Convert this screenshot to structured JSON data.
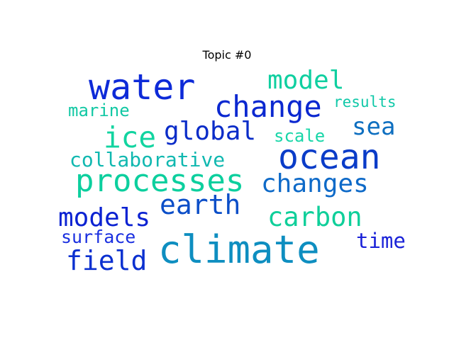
{
  "title": "Topic #0",
  "words": [
    {
      "text": "water",
      "color": "#0d2ad8"
    },
    {
      "text": "model",
      "color": "#0fcfa0"
    },
    {
      "text": "change",
      "color": "#0b28d0"
    },
    {
      "text": "results",
      "color": "#10c8a8"
    },
    {
      "text": "marine",
      "color": "#12c8a4"
    },
    {
      "text": "sea",
      "color": "#0e6fc0"
    },
    {
      "text": "global",
      "color": "#0a2cc8"
    },
    {
      "text": "ice",
      "color": "#12d4a0"
    },
    {
      "text": "scale",
      "color": "#18d6a8"
    },
    {
      "text": "ocean",
      "color": "#0a3cc8"
    },
    {
      "text": "collaborative",
      "color": "#10b8b0"
    },
    {
      "text": "processes",
      "color": "#0ccf9e"
    },
    {
      "text": "changes",
      "color": "#0e6ac8"
    },
    {
      "text": "earth",
      "color": "#0b4ec8"
    },
    {
      "text": "models",
      "color": "#0b22d2"
    },
    {
      "text": "carbon",
      "color": "#0fcf9a"
    },
    {
      "text": "surface",
      "color": "#1a2fe0"
    },
    {
      "text": "climate",
      "color": "#0e8ec0"
    },
    {
      "text": "time",
      "color": "#1a22d8"
    },
    {
      "text": "field",
      "color": "#0b30d0"
    }
  ]
}
